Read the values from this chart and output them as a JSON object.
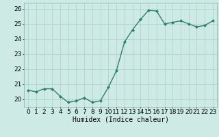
{
  "x": [
    0,
    1,
    2,
    3,
    4,
    5,
    6,
    7,
    8,
    9,
    10,
    11,
    12,
    13,
    14,
    15,
    16,
    17,
    18,
    19,
    20,
    21,
    22,
    23
  ],
  "y": [
    20.6,
    20.5,
    20.7,
    20.7,
    20.2,
    19.8,
    19.9,
    20.1,
    19.8,
    19.9,
    20.8,
    21.9,
    23.8,
    24.6,
    25.3,
    25.9,
    25.85,
    25.0,
    25.1,
    25.2,
    25.0,
    24.8,
    24.9,
    25.2
  ],
  "line_color": "#2e7f6e",
  "marker": "D",
  "marker_size": 2.0,
  "bg_color": "#cdeae4",
  "grid_color": "#b0d4cc",
  "xlabel": "Humidex (Indice chaleur)",
  "ylim": [
    19.5,
    26.4
  ],
  "xlim": [
    -0.5,
    23.5
  ],
  "yticks": [
    20,
    21,
    22,
    23,
    24,
    25,
    26
  ],
  "xticks": [
    0,
    1,
    2,
    3,
    4,
    5,
    6,
    7,
    8,
    9,
    10,
    11,
    12,
    13,
    14,
    15,
    16,
    17,
    18,
    19,
    20,
    21,
    22,
    23
  ],
  "xlabel_fontsize": 7,
  "tick_fontsize": 6.5,
  "line_width": 1.0
}
